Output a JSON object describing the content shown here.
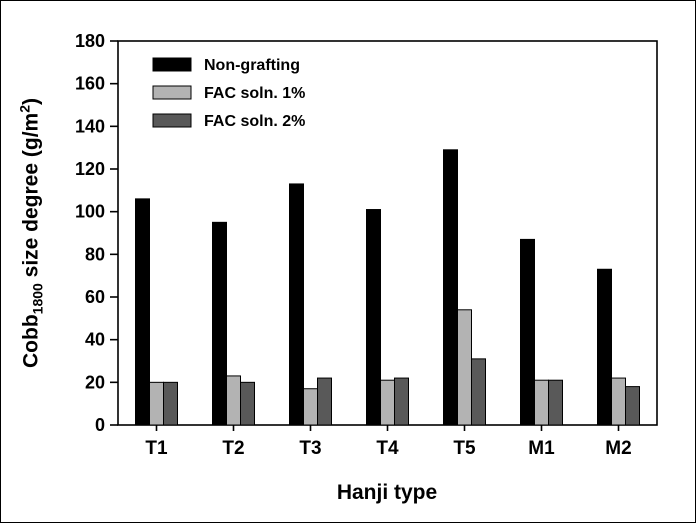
{
  "chart_data": {
    "type": "bar",
    "title": "",
    "xlabel": "Hanji type",
    "ylabel": "Cobb1800 size degree (g/m2)",
    "ylabel_parts": {
      "prefix": "Cobb",
      "sub": "1800",
      "mid": " size degree (g/m",
      "sup": "2",
      "suffix": ")"
    },
    "ylim": [
      0,
      180
    ],
    "yticks": [
      0,
      20,
      40,
      60,
      80,
      100,
      120,
      140,
      160,
      180
    ],
    "categories": [
      "T1",
      "T2",
      "T3",
      "T4",
      "T5",
      "M1",
      "M2"
    ],
    "series": [
      {
        "name": "Non-grafting",
        "color": "#000000",
        "values": [
          106,
          95,
          113,
          101,
          129,
          87,
          73
        ]
      },
      {
        "name": "FAC soln. 1%",
        "color": "#b3b3b3",
        "values": [
          20,
          23,
          17,
          21,
          54,
          21,
          22
        ]
      },
      {
        "name": "FAC soln. 2%",
        "color": "#595959",
        "values": [
          20,
          20,
          22,
          22,
          31,
          21,
          18
        ]
      }
    ],
    "legend_position": "top-left",
    "grid": false,
    "axis_color": "#000000",
    "background_color": "#ffffff"
  }
}
